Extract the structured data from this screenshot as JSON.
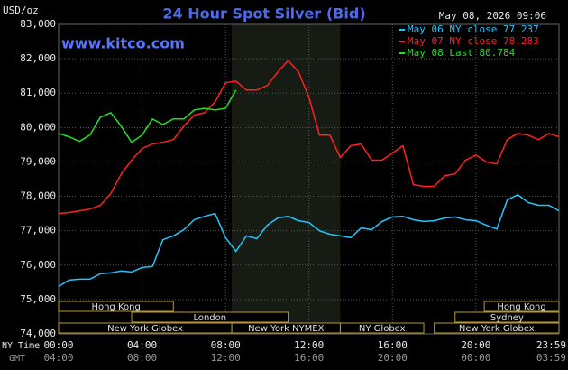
{
  "chart_data": {
    "type": "line",
    "title": "24 Hour Spot Silver (Bid)",
    "y_label": "USD/oz",
    "timestamp": "May 08, 2026 09:06",
    "watermark": "www.kitco.com",
    "x_label_ny": "NY Time",
    "x_label_gmt": "GMT",
    "x": [
      0,
      0.5,
      1,
      1.5,
      2,
      2.5,
      3,
      3.5,
      4,
      4.5,
      5,
      5.5,
      6,
      6.5,
      7,
      7.5,
      8,
      8.5,
      9,
      9.5,
      10,
      10.5,
      11,
      11.5,
      12,
      12.5,
      13,
      13.5,
      14,
      14.5,
      15,
      15.5,
      16,
      16.5,
      17,
      17.5,
      18,
      18.5,
      19,
      19.5,
      20,
      20.5,
      21,
      21.5,
      22,
      22.5,
      23,
      23.5,
      23.98
    ],
    "xlim": [
      0,
      23.98
    ],
    "xticks": [
      {
        "value": 0,
        "label": "00:00"
      },
      {
        "value": 4,
        "label": "04:00"
      },
      {
        "value": 8,
        "label": "08:00"
      },
      {
        "value": 12,
        "label": "12:00"
      },
      {
        "value": 16,
        "label": "16:00"
      },
      {
        "value": 20,
        "label": "20:00"
      },
      {
        "value": 23.98,
        "label": "23:59"
      }
    ],
    "gmt_tick_labels": [
      "04:00",
      "08:00",
      "12:00",
      "16:00",
      "20:00",
      "00:00",
      "03:59"
    ],
    "ylim": [
      74000,
      83000
    ],
    "yticks": [
      {
        "value": 74000,
        "label": "74,000"
      },
      {
        "value": 75000,
        "label": "75,000"
      },
      {
        "value": 76000,
        "label": "76,000"
      },
      {
        "value": 77000,
        "label": "77,000"
      },
      {
        "value": 78000,
        "label": "78,000"
      },
      {
        "value": 79000,
        "label": "79,000"
      },
      {
        "value": 80000,
        "label": "80,000"
      },
      {
        "value": 81000,
        "label": "81,000"
      },
      {
        "value": 82000,
        "label": "82,000"
      },
      {
        "value": 83000,
        "label": "83,000"
      }
    ],
    "grid": true,
    "legend": "top-right",
    "shade": [
      8.3,
      13.5
    ],
    "series": [
      {
        "name": "May 06 NY close 77.237",
        "color": "#22c4ff",
        "values": [
          75380,
          75565,
          75590,
          75590,
          75750,
          75775,
          75830,
          75800,
          75930,
          75960,
          76740,
          76850,
          77030,
          77320,
          77420,
          77500,
          76800,
          76400,
          76850,
          76770,
          77160,
          77370,
          77420,
          77290,
          77240,
          77000,
          76900,
          76850,
          76800,
          77080,
          77030,
          77270,
          77400,
          77420,
          77320,
          77270,
          77290,
          77370,
          77400,
          77320,
          77290,
          77160,
          77050,
          77890,
          78050,
          77820,
          77740,
          77740,
          77580
        ]
      },
      {
        "name": "May 07 NY close 78.283",
        "color": "#ff2020",
        "values": [
          77500,
          77530,
          77580,
          77630,
          77740,
          78080,
          78650,
          79050,
          79390,
          79520,
          79570,
          79650,
          80040,
          80360,
          80430,
          80750,
          81300,
          81350,
          81090,
          81090,
          81220,
          81610,
          81950,
          81610,
          80880,
          79780,
          79780,
          79130,
          79470,
          79520,
          79050,
          79050,
          79260,
          79470,
          78340,
          78290,
          78290,
          78600,
          78650,
          79050,
          79200,
          79000,
          78940,
          79650,
          79830,
          79780,
          79650,
          79830,
          79730
        ]
      },
      {
        "name": "May 08 Last 80.784",
        "color": "#22e022",
        "values": [
          79830,
          79730,
          79600,
          79780,
          80300,
          80430,
          80040,
          79570,
          79780,
          80250,
          80090,
          80250,
          80250,
          80510,
          80560,
          80510,
          80560,
          81090,
          null,
          null,
          null,
          null,
          null,
          null,
          null,
          null,
          null,
          null,
          null,
          null,
          null,
          null,
          null,
          null,
          null,
          null,
          null,
          null,
          null,
          null,
          null,
          null,
          null,
          null,
          null,
          null,
          null,
          null,
          null
        ]
      }
    ],
    "sessions": [
      {
        "name": "Hong Kong",
        "start": 0,
        "end": 5.5
      },
      {
        "name": "Hong Kong",
        "start": 20.4,
        "end": 23.98
      },
      {
        "name": "London",
        "start": 3.5,
        "end": 11
      },
      {
        "name": "Sydney",
        "start": 19,
        "end": 23.98
      },
      {
        "name": "New York Globex",
        "start": 0,
        "end": 8.3
      },
      {
        "name": "New York NYMEX",
        "start": 8.3,
        "end": 13.5
      },
      {
        "name": "NY Globex",
        "start": 13.5,
        "end": 17.5
      },
      {
        "name": "New York Globex",
        "start": 18,
        "end": 23.98
      }
    ]
  }
}
